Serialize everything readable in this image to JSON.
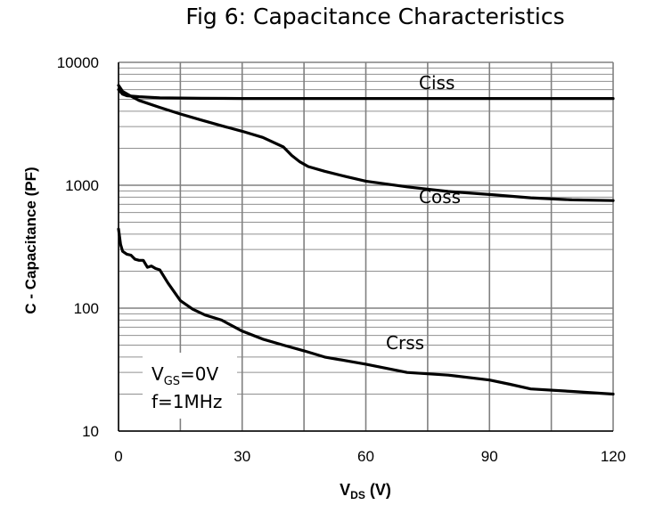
{
  "chart_data": {
    "type": "line",
    "title": "Fig 6: Capacitance Characteristics",
    "xlabel": {
      "main": "V",
      "sub": "DS",
      "suffix": " (V)"
    },
    "ylabel": "C - Capacitance (PF)",
    "xlim": [
      0,
      120
    ],
    "ylim": [
      10,
      10000
    ],
    "yscale": "log",
    "x_ticks": [
      "0",
      "30",
      "60",
      "90",
      "120"
    ],
    "y_ticks": [
      "10",
      "100",
      "1000",
      "10000"
    ],
    "grid": true,
    "series": [
      {
        "name": "Ciss",
        "x": [
          0,
          1,
          2,
          5,
          10,
          20,
          30,
          40,
          60,
          90,
          120
        ],
        "y": [
          6000,
          5500,
          5350,
          5250,
          5150,
          5100,
          5080,
          5080,
          5080,
          5080,
          5080
        ]
      },
      {
        "name": "Coss",
        "x": [
          0,
          1,
          3,
          5,
          10,
          15,
          20,
          25,
          30,
          35,
          40,
          42,
          44,
          46,
          50,
          55,
          60,
          70,
          80,
          90,
          100,
          110,
          120
        ],
        "y": [
          6500,
          5800,
          5300,
          4900,
          4300,
          3800,
          3400,
          3050,
          2750,
          2450,
          2050,
          1750,
          1550,
          1420,
          1300,
          1180,
          1080,
          970,
          890,
          840,
          790,
          760,
          750
        ]
      },
      {
        "name": "Crss",
        "x": [
          0,
          0.5,
          1,
          2,
          3,
          4,
          5,
          6,
          7,
          8,
          9,
          10,
          12,
          15,
          18,
          21,
          25,
          30,
          35,
          40,
          45,
          50,
          60,
          70,
          80,
          90,
          95,
          100,
          110,
          120
        ],
        "y": [
          440,
          330,
          290,
          275,
          270,
          250,
          245,
          245,
          215,
          220,
          210,
          205,
          160,
          115,
          98,
          88,
          80,
          65,
          56,
          50,
          45,
          40,
          35,
          30,
          28.5,
          26,
          24,
          22,
          21,
          20
        ]
      }
    ],
    "annotations": {
      "vgs_main": "V",
      "vgs_sub": "GS",
      "vgs_value": "=0V",
      "freq": "f=1MHz"
    }
  }
}
